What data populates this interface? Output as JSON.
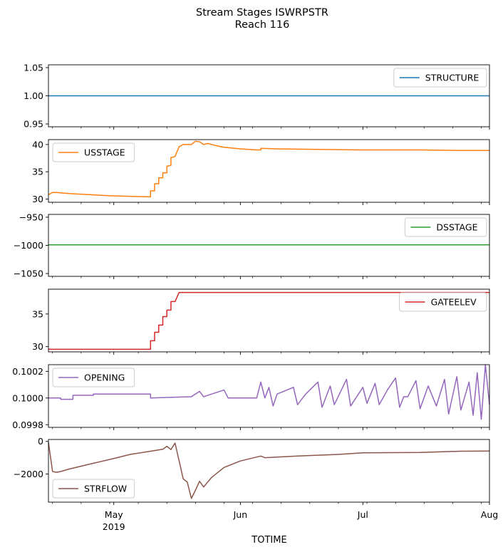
{
  "figure": {
    "title_line1": "Stream Stages ISWRPSTR",
    "title_line2": "Reach 116",
    "xlabel": "TOTIME",
    "x_ticks": [
      {
        "date": "2019-05-01",
        "label": "May",
        "sublabel": "2019"
      },
      {
        "date": "2019-06-01",
        "label": "Jun",
        "sublabel": ""
      },
      {
        "date": "2019-07-01",
        "label": "Jul",
        "sublabel": ""
      },
      {
        "date": "2019-08-01",
        "label": "Aug",
        "sublabel": ""
      }
    ],
    "x_range": [
      "2019-04-15",
      "2019-08-01"
    ]
  },
  "chart_data": [
    {
      "type": "line",
      "series": [
        {
          "name": "STRUCTURE",
          "color": "#1f77b4",
          "points": [
            [
              "2019-04-15",
              1.0
            ],
            [
              "2019-08-01",
              1.0
            ]
          ]
        }
      ],
      "ylim": [
        0.945,
        1.055
      ],
      "yticks": [
        {
          "value": 0.95,
          "label": "0.95"
        },
        {
          "value": 1.0,
          "label": "1.00"
        },
        {
          "value": 1.05,
          "label": "1.05"
        }
      ],
      "legend": "upper right"
    },
    {
      "type": "line",
      "series": [
        {
          "name": "USSTAGE",
          "color": "#ff7f0e",
          "points": [
            [
              "2019-04-15",
              30.8
            ],
            [
              "2019-04-16",
              31.2
            ],
            [
              "2019-04-17",
              31.2
            ],
            [
              "2019-04-20",
              31.0
            ],
            [
              "2019-04-25",
              30.8
            ],
            [
              "2019-04-30",
              30.6
            ],
            [
              "2019-05-05",
              30.5
            ],
            [
              "2019-05-10",
              30.4
            ],
            [
              "2019-05-10",
              31.5
            ],
            [
              "2019-05-11",
              31.5
            ],
            [
              "2019-05-11",
              32.8
            ],
            [
              "2019-05-12",
              32.8
            ],
            [
              "2019-05-12",
              33.9
            ],
            [
              "2019-05-13",
              33.9
            ],
            [
              "2019-05-13",
              34.8
            ],
            [
              "2019-05-14",
              34.8
            ],
            [
              "2019-05-14",
              36.0
            ],
            [
              "2019-05-15",
              36.2
            ],
            [
              "2019-05-15",
              37.6
            ],
            [
              "2019-05-16",
              37.8
            ],
            [
              "2019-05-17",
              39.6
            ],
            [
              "2019-05-18",
              40.0
            ],
            [
              "2019-05-20",
              40.0
            ],
            [
              "2019-05-21",
              40.6
            ],
            [
              "2019-05-22",
              40.5
            ],
            [
              "2019-05-23",
              40.0
            ],
            [
              "2019-05-24",
              40.2
            ],
            [
              "2019-05-26",
              39.8
            ],
            [
              "2019-05-28",
              39.5
            ],
            [
              "2019-06-01",
              39.2
            ],
            [
              "2019-06-05",
              39.0
            ],
            [
              "2019-06-06",
              39.0
            ],
            [
              "2019-06-06",
              39.3
            ],
            [
              "2019-06-10",
              39.2
            ],
            [
              "2019-06-20",
              39.1
            ],
            [
              "2019-07-01",
              39.0
            ],
            [
              "2019-07-15",
              39.0
            ],
            [
              "2019-07-25",
              38.9
            ],
            [
              "2019-08-01",
              38.9
            ]
          ]
        }
      ],
      "ylim": [
        29.4,
        40.9
      ],
      "yticks": [
        {
          "value": 30,
          "label": "30"
        },
        {
          "value": 35,
          "label": "35"
        },
        {
          "value": 40,
          "label": "40"
        }
      ],
      "legend": "upper left"
    },
    {
      "type": "line",
      "series": [
        {
          "name": "DSSTAGE",
          "color": "#2ca02c",
          "points": [
            [
              "2019-04-15",
              -999.0
            ],
            [
              "2019-08-01",
              -999.0
            ]
          ]
        }
      ],
      "ylim": [
        -1055,
        -945
      ],
      "yticks": [
        {
          "value": -1050,
          "label": "−1050"
        },
        {
          "value": -1000,
          "label": "−1000"
        },
        {
          "value": -950,
          "label": "−950"
        }
      ],
      "legend": "upper right"
    },
    {
      "type": "line",
      "series": [
        {
          "name": "GATEELEV",
          "color": "#d62728",
          "points": [
            [
              "2019-04-15",
              29.6
            ],
            [
              "2019-05-10",
              29.6
            ],
            [
              "2019-05-10",
              30.9
            ],
            [
              "2019-05-11",
              30.9
            ],
            [
              "2019-05-11",
              32.2
            ],
            [
              "2019-05-12",
              32.2
            ],
            [
              "2019-05-12",
              33.3
            ],
            [
              "2019-05-13",
              33.3
            ],
            [
              "2019-05-13",
              34.6
            ],
            [
              "2019-05-14",
              34.6
            ],
            [
              "2019-05-14",
              35.6
            ],
            [
              "2019-05-15",
              35.6
            ],
            [
              "2019-05-15",
              36.9
            ],
            [
              "2019-05-16",
              36.9
            ],
            [
              "2019-05-17",
              38.3
            ],
            [
              "2019-06-15",
              38.3
            ],
            [
              "2019-07-15",
              38.3
            ],
            [
              "2019-08-01",
              38.3
            ]
          ]
        }
      ],
      "ylim": [
        29.2,
        38.8
      ],
      "yticks": [
        {
          "value": 30,
          "label": "30"
        },
        {
          "value": 35,
          "label": "35"
        }
      ],
      "legend": "upper right"
    },
    {
      "type": "line",
      "series": [
        {
          "name": "OPENING",
          "color": "#9467bd",
          "points": [
            [
              "2019-04-15",
              0.1
            ],
            [
              "2019-04-18",
              0.1
            ],
            [
              "2019-04-18",
              0.09999
            ],
            [
              "2019-04-21",
              0.09999
            ],
            [
              "2019-04-21",
              0.10002
            ],
            [
              "2019-04-26",
              0.10002
            ],
            [
              "2019-04-26",
              0.10003
            ],
            [
              "2019-05-10",
              0.10003
            ],
            [
              "2019-05-10",
              0.1
            ],
            [
              "2019-05-20",
              0.10001
            ],
            [
              "2019-05-22",
              0.10005
            ],
            [
              "2019-05-23",
              0.10001
            ],
            [
              "2019-05-28",
              0.10006
            ],
            [
              "2019-05-29",
              0.1
            ],
            [
              "2019-06-05",
              0.1
            ],
            [
              "2019-06-06",
              0.10012
            ],
            [
              "2019-06-07",
              0.1
            ],
            [
              "2019-06-08",
              0.10008
            ],
            [
              "2019-06-09",
              0.09994
            ],
            [
              "2019-06-10",
              0.10003
            ],
            [
              "2019-06-14",
              0.10008
            ],
            [
              "2019-06-15",
              0.09995
            ],
            [
              "2019-06-17",
              0.10003
            ],
            [
              "2019-06-20",
              0.10012
            ],
            [
              "2019-06-21",
              0.09993
            ],
            [
              "2019-06-23",
              0.10009
            ],
            [
              "2019-06-24",
              0.09995
            ],
            [
              "2019-06-27",
              0.10014
            ],
            [
              "2019-06-28",
              0.09994
            ],
            [
              "2019-07-01",
              0.10008
            ],
            [
              "2019-07-02",
              0.09996
            ],
            [
              "2019-07-04",
              0.10011
            ],
            [
              "2019-07-05",
              0.09995
            ],
            [
              "2019-07-07",
              0.10006
            ],
            [
              "2019-07-09",
              0.10015
            ],
            [
              "2019-07-10",
              0.09993
            ],
            [
              "2019-07-11",
              0.10001
            ],
            [
              "2019-07-12",
              0.10001
            ],
            [
              "2019-07-14",
              0.10013
            ],
            [
              "2019-07-15",
              0.09992
            ],
            [
              "2019-07-17",
              0.10009
            ],
            [
              "2019-07-19",
              0.09994
            ],
            [
              "2019-07-21",
              0.10014
            ],
            [
              "2019-07-22",
              0.09988
            ],
            [
              "2019-07-24",
              0.10016
            ],
            [
              "2019-07-25",
              0.09991
            ],
            [
              "2019-07-27",
              0.10012
            ],
            [
              "2019-07-28",
              0.09987
            ],
            [
              "2019-07-29",
              0.10019
            ],
            [
              "2019-07-30",
              0.09984
            ],
            [
              "2019-07-31",
              0.10025
            ],
            [
              "2019-08-01",
              0.09995
            ]
          ]
        }
      ],
      "ylim": [
        0.09978,
        0.10025
      ],
      "yticks": [
        {
          "value": 0.0998,
          "label": "0.0998"
        },
        {
          "value": 0.1,
          "label": "0.1000"
        },
        {
          "value": 0.1002,
          "label": "0.1002"
        }
      ],
      "legend": "upper left"
    },
    {
      "type": "line",
      "series": [
        {
          "name": "STRFLOW",
          "color": "#8c564b",
          "points": [
            [
              "2019-04-15",
              -50
            ],
            [
              "2019-04-16",
              -1850
            ],
            [
              "2019-04-17",
              -1900
            ],
            [
              "2019-04-18",
              -1850
            ],
            [
              "2019-04-20",
              -1700
            ],
            [
              "2019-04-25",
              -1400
            ],
            [
              "2019-05-01",
              -1050
            ],
            [
              "2019-05-05",
              -800
            ],
            [
              "2019-05-10",
              -600
            ],
            [
              "2019-05-13",
              -480
            ],
            [
              "2019-05-14",
              -300
            ],
            [
              "2019-05-15",
              -500
            ],
            [
              "2019-05-16",
              -100
            ],
            [
              "2019-05-17",
              -1200
            ],
            [
              "2019-05-18",
              -2300
            ],
            [
              "2019-05-19",
              -2500
            ],
            [
              "2019-05-20",
              -3500
            ],
            [
              "2019-05-21",
              -3000
            ],
            [
              "2019-05-22",
              -2450
            ],
            [
              "2019-05-23",
              -2800
            ],
            [
              "2019-05-25",
              -2200
            ],
            [
              "2019-05-28",
              -1600
            ],
            [
              "2019-06-01",
              -1200
            ],
            [
              "2019-06-06",
              -900
            ],
            [
              "2019-06-07",
              -1000
            ],
            [
              "2019-06-15",
              -900
            ],
            [
              "2019-06-25",
              -800
            ],
            [
              "2019-07-01",
              -700
            ],
            [
              "2019-07-15",
              -680
            ],
            [
              "2019-07-25",
              -600
            ],
            [
              "2019-08-01",
              -590
            ]
          ]
        }
      ],
      "ylim": [
        -3730,
        120
      ],
      "yticks": [
        {
          "value": -2000,
          "label": "−2000"
        },
        {
          "value": 0,
          "label": "0"
        }
      ],
      "legend": "lower left"
    }
  ]
}
